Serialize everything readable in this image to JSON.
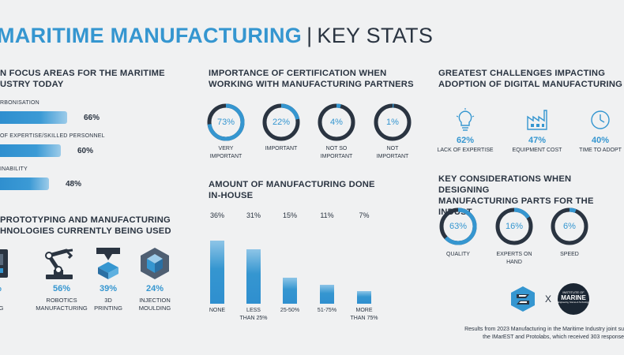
{
  "header": {
    "title_highlight": "MARITIME MANUFACTURING",
    "separator": "|",
    "title_rest": "KEY STATS"
  },
  "focus_areas": {
    "title_line1": "N FOCUS AREAS FOR THE MARITIME",
    "title_line2": "USTRY TODAY",
    "items": [
      {
        "label": "RBONISATION",
        "value": "66%"
      },
      {
        "label": "OF EXPERTISE/SKILLED PERSONNEL",
        "value": "60%"
      },
      {
        "label": "INABILITY",
        "value": "48%"
      }
    ]
  },
  "technologies": {
    "title_line1": "PROTOTYPING AND MANUFACTURING",
    "title_line2": "HNOLOGIES CURRENTLY BEING USED",
    "items": [
      {
        "value": "0%",
        "label1": "C",
        "label2": "INING"
      },
      {
        "value": "56%",
        "label1": "ROBOTICS",
        "label2": "MANUFACTURING"
      },
      {
        "value": "39%",
        "label1": "3D",
        "label2": "PRINTING"
      },
      {
        "value": "24%",
        "label1": "INJECTION",
        "label2": "MOULDING"
      }
    ]
  },
  "certification": {
    "title_line1": "IMPORTANCE OF CERTIFICATION WHEN",
    "title_line2": "WORKING WITH MANUFACTURING PARTNERS"
  },
  "inhouse": {
    "title_line1": "AMOUNT OF MANUFACTURING DONE",
    "title_line2": "IN-HOUSE"
  },
  "challenges": {
    "title_line1": "GREATEST CHALLENGES IMPACTING",
    "title_line2": "ADOPTION OF DIGITAL MANUFACTURING",
    "items": [
      {
        "value": "62%",
        "label": "LACK OF EXPERTISE",
        "icon": "lightbulb-icon"
      },
      {
        "value": "47%",
        "label": "EQUIPMENT COST",
        "icon": "factory-icon"
      },
      {
        "value": "40%",
        "label": "TIME TO ADOPT",
        "icon": "clock-icon"
      }
    ]
  },
  "considerations": {
    "title_line1": "KEY CONSIDERATIONS WHEN DESIGNING",
    "title_line2": "MANUFACTURING PARTS FOR THE INDUST"
  },
  "logos": {
    "cross": "X",
    "marine_line1": "INSTITUTE OF",
    "marine_line2": "MARINE",
    "marine_line3": "Engineering, Science & Technology"
  },
  "footnote": {
    "line1": "Results from 2023 Manufacturing in the Maritime Industry joint su",
    "line2": "the IMarEST and Protolabs, which received 303 response"
  },
  "colors": {
    "accent": "#3596d0",
    "dark": "#2a3441",
    "ring_track": "#2a3441",
    "background": "#f0f1f2"
  },
  "chart_data": [
    {
      "type": "bar",
      "orientation": "horizontal",
      "categories": [
        "RBONISATION",
        "OF EXPERTISE/SKILLED PERSONNEL",
        "INABILITY"
      ],
      "values": [
        66,
        60,
        48
      ],
      "unit": "%"
    },
    {
      "type": "pie",
      "variant": "donut",
      "categories": [
        "VERY IMPORTANT",
        "IMPORTANT",
        "NOT SO IMPORTANT",
        "NOT IMPORTANT"
      ],
      "values": [
        73,
        22,
        4,
        1
      ],
      "labels": [
        "73%",
        "22%",
        "4%",
        "1%"
      ],
      "label_lines": [
        [
          "VERY",
          "IMPORTANT"
        ],
        [
          "IMPORTANT"
        ],
        [
          "NOT SO",
          "IMPORTANT"
        ],
        [
          "NOT",
          "IMPORTANT"
        ]
      ]
    },
    {
      "type": "bar",
      "orientation": "vertical",
      "categories": [
        "NONE",
        "LESS THAN 25%",
        "25-50%",
        "51-75%",
        "MORE THAN 75%"
      ],
      "label_lines": [
        [
          "NONE"
        ],
        [
          "LESS",
          "THAN 25%"
        ],
        [
          "25-50%"
        ],
        [
          "51-75%"
        ],
        [
          "MORE",
          "THAN 75%"
        ]
      ],
      "values": [
        36,
        31,
        15,
        11,
        7
      ],
      "labels": [
        "36%",
        "31%",
        "15%",
        "11%",
        "7%"
      ]
    },
    {
      "type": "pie",
      "variant": "donut",
      "categories": [
        "QUALITY",
        "EXPERTS ON HAND",
        "SPEED"
      ],
      "values": [
        63,
        16,
        6
      ],
      "labels": [
        "63%",
        "16%",
        "6%"
      ],
      "label_lines": [
        [
          "QUALITY"
        ],
        [
          "EXPERTS ON",
          "HAND"
        ],
        [
          "SPEED"
        ]
      ]
    }
  ]
}
